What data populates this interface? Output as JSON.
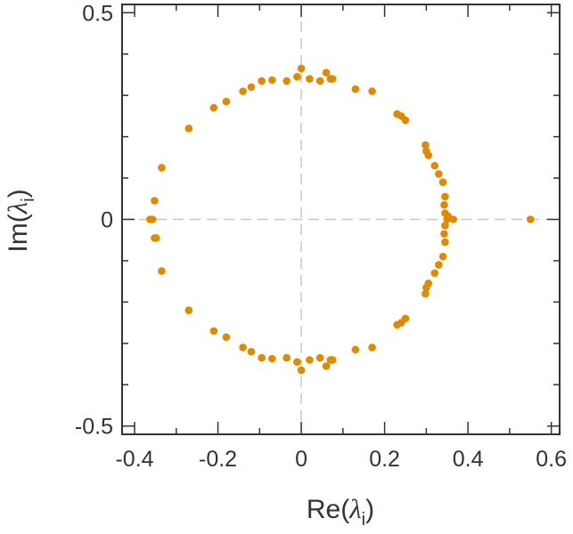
{
  "chart_data": {
    "type": "scatter",
    "title": "",
    "xlabel": {
      "prefix": "Re(",
      "symbol": "λ",
      "subscript": "i",
      "suffix": ")"
    },
    "ylabel": {
      "prefix": "Im(",
      "symbol": "λ",
      "subscript": "i",
      "suffix": ")"
    },
    "xlim": [
      -0.43,
      0.62
    ],
    "ylim": [
      -0.52,
      0.52
    ],
    "x_ticks": [
      -0.4,
      -0.2,
      0,
      0.2,
      0.4,
      0.6
    ],
    "x_tick_labels": [
      "-0.4",
      "-0.2",
      "0",
      "0.2",
      "0.4",
      "0.6"
    ],
    "y_ticks": [
      -0.5,
      0,
      0.5
    ],
    "y_tick_labels": [
      "-0.5",
      "0",
      "0.5"
    ],
    "zero_lines": true,
    "grid": false,
    "marker_color": "#E08A00",
    "series": [
      {
        "name": "eigenvalues",
        "x": [
          -0.363,
          -0.357,
          -0.352,
          -0.348,
          -0.352,
          -0.335,
          -0.335,
          -0.27,
          -0.27,
          -0.21,
          -0.21,
          -0.18,
          -0.18,
          -0.14,
          -0.14,
          -0.12,
          -0.12,
          -0.095,
          -0.095,
          -0.07,
          -0.07,
          -0.035,
          -0.035,
          -0.01,
          -0.01,
          0,
          0,
          0.02,
          0.02,
          0.045,
          0.045,
          0.07,
          0.07,
          0.06,
          0.06,
          0.075,
          0.075,
          0.13,
          0.13,
          0.17,
          0.17,
          0.23,
          0.23,
          0.24,
          0.24,
          0.25,
          0.25,
          0.298,
          0.298,
          0.3,
          0.3,
          0.305,
          0.305,
          0.32,
          0.32,
          0.33,
          0.33,
          0.34,
          0.34,
          0.345,
          0.345,
          0.343,
          0.343,
          0.345,
          0.345,
          0.35,
          0.352,
          0.365,
          0.55
        ],
        "y": [
          0,
          0,
          0.045,
          -0.045,
          -0.045,
          0.125,
          -0.125,
          0.22,
          -0.22,
          0.27,
          -0.27,
          0.285,
          -0.285,
          0.31,
          -0.31,
          0.32,
          -0.32,
          0.335,
          -0.335,
          0.337,
          -0.337,
          0.335,
          -0.335,
          0.345,
          -0.345,
          0.365,
          -0.365,
          0.34,
          -0.34,
          0.335,
          -0.335,
          0.34,
          -0.34,
          0.355,
          -0.355,
          0.34,
          -0.34,
          0.315,
          -0.315,
          0.31,
          -0.31,
          0.255,
          -0.255,
          0.25,
          -0.25,
          0.24,
          -0.24,
          0.18,
          -0.18,
          0.165,
          -0.165,
          0.155,
          -0.155,
          0.13,
          -0.13,
          0.11,
          -0.11,
          0.09,
          -0.09,
          0.055,
          -0.055,
          0.035,
          -0.035,
          0.015,
          -0.015,
          0,
          0.008,
          0,
          0
        ]
      }
    ]
  }
}
